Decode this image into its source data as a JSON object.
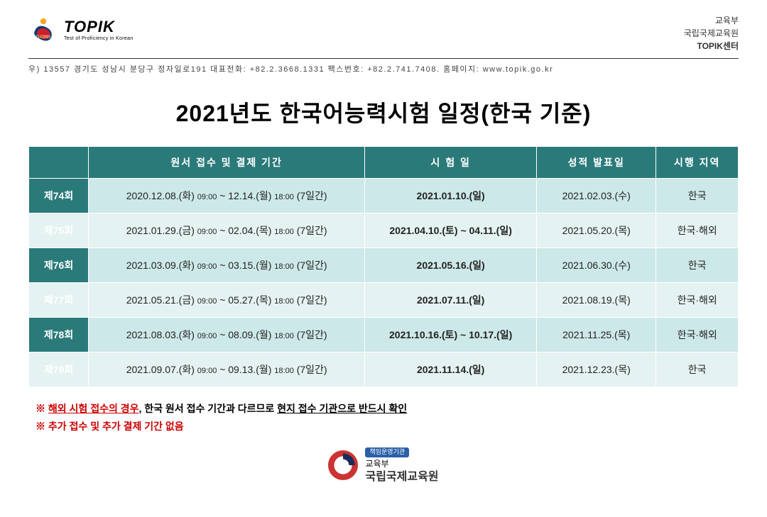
{
  "header": {
    "logo_text_main": "TOPIK",
    "logo_text_sub": "Test of Proficiency in Korean",
    "logo_badge": "TLC2021",
    "org_line1": "교육부",
    "org_line2": "국립국제교육원",
    "org_line3": "TOPIK센터",
    "address": "우) 13557  경기도 성남시 분당구 정자일로191  대표전화: +82.2.3668.1331  팩스번호: +82.2.741.7408.  홈페이지: www.topik.go.kr"
  },
  "title": "2021년도 한국어능력시험 일정(한국 기준)",
  "table": {
    "headers": {
      "session": "",
      "registration": "원서 접수 및 결제 기간",
      "exam_date": "시 험 일",
      "result_date": "성적 발표일",
      "region": "시행 지역"
    },
    "rows": [
      {
        "session": "제74회",
        "reg_prefix": "2020.12.08.(화) ",
        "reg_time1": "09:00",
        "reg_mid": " ~ 12.14.(월) ",
        "reg_time2": "18:00",
        "reg_suffix": " (7일간)",
        "exam": "2021.01.10.(일)",
        "result": "2021.02.03.(수)",
        "region": "한국"
      },
      {
        "session": "제75회",
        "reg_prefix": "2021.01.29.(금) ",
        "reg_time1": "09:00",
        "reg_mid": " ~ 02.04.(목) ",
        "reg_time2": "18:00",
        "reg_suffix": " (7일간)",
        "exam": "2021.04.10.(토) ~ 04.11.(일)",
        "result": "2021.05.20.(목)",
        "region": "한국·해외"
      },
      {
        "session": "제76회",
        "reg_prefix": "2021.03.09.(화) ",
        "reg_time1": "09:00",
        "reg_mid": " ~ 03.15.(월) ",
        "reg_time2": "18:00",
        "reg_suffix": " (7일간)",
        "exam": "2021.05.16.(일)",
        "result": "2021.06.30.(수)",
        "region": "한국"
      },
      {
        "session": "제77회",
        "reg_prefix": "2021.05.21.(금) ",
        "reg_time1": "09:00",
        "reg_mid": " ~ 05.27.(목) ",
        "reg_time2": "18:00",
        "reg_suffix": " (7일간)",
        "exam": "2021.07.11.(일)",
        "result": "2021.08.19.(목)",
        "region": "한국·해외"
      },
      {
        "session": "제78회",
        "reg_prefix": "2021.08.03.(화) ",
        "reg_time1": "09:00",
        "reg_mid": " ~ 08.09.(월) ",
        "reg_time2": "18:00",
        "reg_suffix": " (7일간)",
        "exam": "2021.10.16.(토) ~ 10.17.(일)",
        "result": "2021.11.25.(목)",
        "region": "한국·해외"
      },
      {
        "session": "제79회",
        "reg_prefix": "2021.09.07.(화) ",
        "reg_time1": "09:00",
        "reg_mid": " ~ 09.13.(월) ",
        "reg_time2": "18:00",
        "reg_suffix": " (7일간)",
        "exam": "2021.11.14.(일)",
        "result": "2021.12.23.(목)",
        "region": "한국"
      }
    ]
  },
  "notes": {
    "line1_prefix": "※ ",
    "line1_red_ul": "해외 시험 접수의 경우",
    "line1_mid": ", 한국 원서 접수 기간과 다르므로 ",
    "line1_ul": "현지 접수 기관으로 반드시 확인",
    "line2": "※ 추가 접수 및 추가 결제 기간 없음"
  },
  "footer": {
    "badge": "책임운영기관",
    "line1": "교육부",
    "line2": "국립국제교육원"
  },
  "colors": {
    "header_bg": "#2b7a7a",
    "row_odd_bg": "#cde8e8",
    "row_even_bg": "#e5f2f2",
    "text": "#222222",
    "red": "#cc0000"
  }
}
